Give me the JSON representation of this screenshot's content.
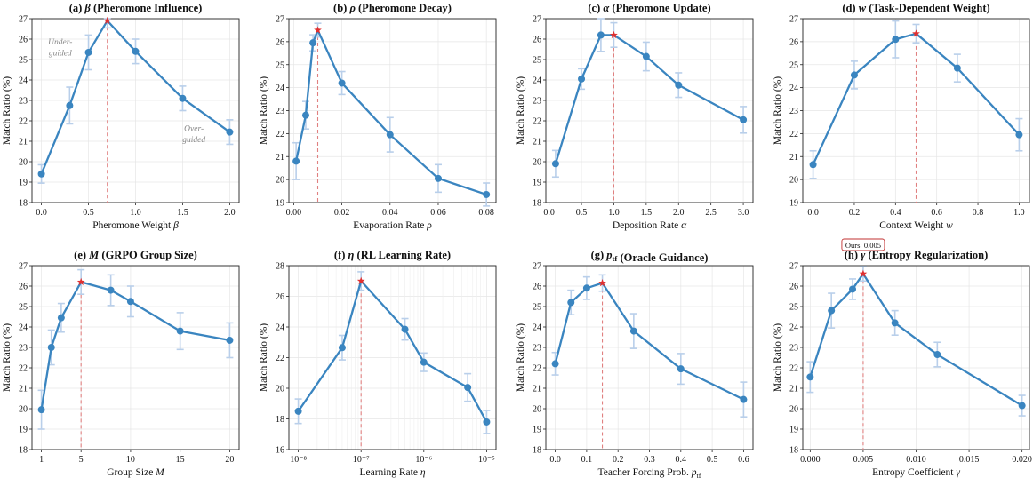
{
  "colors": {
    "line": "#3a85c0",
    "marker": "#3a85c0",
    "errorbar": "#b9cfea",
    "star": "#e03030",
    "vline": "#e08080",
    "grid": "#e6e6e6"
  },
  "chart_data": [
    {
      "type": "line",
      "title": "(a) β (Pheromone Influence)",
      "xlabel": "Pheromone Weight β",
      "ylabel": "Match Ratio (%)",
      "xscale": "linear",
      "xlim": [
        -0.1,
        2.1
      ],
      "ylim": [
        18,
        27
      ],
      "xticks": [
        0.0,
        0.5,
        1.0,
        1.5,
        2.0
      ],
      "xtick_labels": [
        "0.0",
        "0.5",
        "1.0",
        "1.5",
        "2.0"
      ],
      "yticks": [
        18,
        19,
        20,
        21,
        22,
        23,
        24,
        25,
        26,
        27
      ],
      "x": [
        0.0,
        0.3,
        0.5,
        0.7,
        1.0,
        1.5,
        2.0
      ],
      "y": [
        19.4,
        22.75,
        25.35,
        26.9,
        25.4,
        23.1,
        21.45
      ],
      "err": [
        0.45,
        0.9,
        0.85,
        0.35,
        0.6,
        0.6,
        0.6
      ],
      "best_x": 0.7,
      "best_y": 26.9,
      "annotations": [
        {
          "text": "Under-",
          "x": 0.2,
          "y": 25.75
        },
        {
          "text": "guided",
          "x": 0.2,
          "y": 25.2
        },
        {
          "text": "Over-",
          "x": 1.62,
          "y": 21.5
        },
        {
          "text": "guided",
          "x": 1.62,
          "y": 20.95
        }
      ]
    },
    {
      "type": "line",
      "title": "(b) ρ (Pheromone Decay)",
      "xlabel": "Evaporation Rate ρ",
      "ylabel": "Match Ratio (%)",
      "xscale": "linear",
      "xlim": [
        -0.002,
        0.084
      ],
      "ylim": [
        19,
        27
      ],
      "xticks": [
        0.0,
        0.02,
        0.04,
        0.06,
        0.08
      ],
      "xtick_labels": [
        "0.00",
        "0.02",
        "0.04",
        "0.06",
        "0.08"
      ],
      "yticks": [
        19,
        20,
        21,
        22,
        23,
        24,
        25,
        26,
        27
      ],
      "x": [
        0.001,
        0.005,
        0.008,
        0.01,
        0.02,
        0.04,
        0.06,
        0.08
      ],
      "y": [
        20.8,
        22.8,
        25.95,
        26.5,
        24.2,
        21.95,
        20.05,
        19.35
      ],
      "err": [
        0.8,
        0.6,
        0.35,
        0.3,
        0.5,
        0.75,
        0.6,
        0.5
      ],
      "best_x": 0.01,
      "best_y": 26.5,
      "annotations": []
    },
    {
      "type": "line",
      "title": "(c) α (Pheromone Update)",
      "xlabel": "Deposition Rate α",
      "ylabel": "Match Ratio (%)",
      "xscale": "linear",
      "xlim": [
        -0.05,
        3.15
      ],
      "ylim": [
        18,
        27
      ],
      "xticks": [
        0.0,
        0.5,
        1.0,
        1.5,
        2.0,
        2.5,
        3.0
      ],
      "xtick_labels": [
        "0.0",
        "0.5",
        "1.0",
        "1.5",
        "2.0",
        "2.5",
        "3.0"
      ],
      "yticks": [
        18,
        19,
        20,
        21,
        22,
        23,
        24,
        25,
        26,
        27
      ],
      "x": [
        0.1,
        0.5,
        0.8,
        1.0,
        1.5,
        2.0,
        3.0
      ],
      "y": [
        19.9,
        24.05,
        26.2,
        26.2,
        25.15,
        23.75,
        22.05
      ],
      "err": [
        0.65,
        0.5,
        0.8,
        0.6,
        0.7,
        0.6,
        0.65
      ],
      "best_x": 1.0,
      "best_y": 26.2,
      "annotations": []
    },
    {
      "type": "line",
      "title": "(d) w (Task-Dependent Weight)",
      "xlabel": "Context Weight w",
      "ylabel": "Match Ratio (%)",
      "xscale": "linear",
      "xlim": [
        -0.05,
        1.05
      ],
      "ylim": [
        19,
        27
      ],
      "xticks": [
        0.0,
        0.2,
        0.4,
        0.6,
        0.8,
        1.0
      ],
      "xtick_labels": [
        "0.0",
        "0.2",
        "0.4",
        "0.6",
        "0.8",
        "1.0"
      ],
      "yticks": [
        19,
        20,
        21,
        22,
        23,
        24,
        25,
        26,
        27
      ],
      "x": [
        0.0,
        0.2,
        0.4,
        0.5,
        0.7,
        1.0
      ],
      "y": [
        20.65,
        24.55,
        26.1,
        26.35,
        24.85,
        21.95
      ],
      "err": [
        0.6,
        0.6,
        0.8,
        0.4,
        0.6,
        0.7
      ],
      "best_x": 0.5,
      "best_y": 26.35,
      "annotations": []
    },
    {
      "type": "line",
      "title": "(e) M (GRPO Group Size)",
      "xlabel": "Group Size M",
      "ylabel": "Match Ratio (%)",
      "xscale": "linear",
      "xlim": [
        0.05,
        20.95
      ],
      "ylim": [
        18,
        27
      ],
      "xticks": [
        1,
        5,
        10,
        15,
        20
      ],
      "xtick_labels": [
        "1",
        "5",
        "10",
        "15",
        "20"
      ],
      "yticks": [
        18,
        19,
        20,
        21,
        22,
        23,
        24,
        25,
        26,
        27
      ],
      "x": [
        1,
        2,
        3,
        5,
        8,
        10,
        15,
        20
      ],
      "y": [
        19.95,
        23.0,
        24.45,
        26.2,
        25.8,
        25.25,
        23.8,
        23.35
      ],
      "err": [
        0.95,
        0.85,
        0.7,
        0.6,
        0.75,
        0.75,
        0.9,
        0.85
      ],
      "best_x": 5,
      "best_y": 26.2,
      "annotations": []
    },
    {
      "type": "line",
      "title": "(f) η (RL Learning Rate)",
      "xlabel": "Learning Rate η",
      "ylabel": "Match Ratio (%)",
      "xscale": "log",
      "xlim": [
        -8.15,
        -4.85
      ],
      "ylim": [
        16,
        28
      ],
      "xticks": [
        -8,
        -7,
        -6,
        -5
      ],
      "xtick_labels": [
        "10⁻⁸",
        "10⁻⁷",
        "10⁻⁶",
        "10⁻⁵"
      ],
      "yticks": [
        16,
        18,
        20,
        22,
        24,
        26,
        28
      ],
      "x_values": [
        "1e-8",
        "5e-8",
        "1e-7",
        "5e-7",
        "1e-6",
        "5e-6",
        "1e-5"
      ],
      "x": [
        -8,
        -7.301,
        -7,
        -6.301,
        -6,
        -5.301,
        -5
      ],
      "y": [
        18.5,
        22.65,
        27.0,
        23.85,
        21.7,
        20.05,
        17.8
      ],
      "err": [
        0.8,
        0.8,
        0.6,
        0.7,
        0.6,
        0.9,
        0.75
      ],
      "best_x": -7,
      "best_y": 27.0,
      "annotations": []
    },
    {
      "type": "line",
      "title": "(g) ptf (Oracle Guidance)",
      "xlabel": "Teacher Forcing Prob. ptf",
      "ylabel": "Match Ratio (%)",
      "xscale": "linear",
      "xlim": [
        -0.03,
        0.63
      ],
      "ylim": [
        18,
        27
      ],
      "xticks": [
        0.0,
        0.1,
        0.2,
        0.3,
        0.4,
        0.5,
        0.6
      ],
      "xtick_labels": [
        "0.0",
        "0.1",
        "0.2",
        "0.3",
        "0.4",
        "0.5",
        "0.6"
      ],
      "yticks": [
        18,
        19,
        20,
        21,
        22,
        23,
        24,
        25,
        26,
        27
      ],
      "x": [
        0.0,
        0.05,
        0.1,
        0.15,
        0.25,
        0.4,
        0.6
      ],
      "y": [
        22.2,
        25.2,
        25.9,
        26.15,
        23.8,
        21.95,
        20.45
      ],
      "err": [
        0.55,
        0.6,
        0.55,
        0.4,
        0.85,
        0.75,
        0.85
      ],
      "best_x": 0.15,
      "best_y": 26.15,
      "annotations": []
    },
    {
      "type": "line",
      "title": "(h) γ (Entropy Regularization)",
      "xlabel": "Entropy Coefficient γ",
      "ylabel": "Match Ratio (%)",
      "xscale": "linear",
      "xlim": [
        -0.0007,
        0.0207
      ],
      "ylim": [
        18,
        27
      ],
      "xticks": [
        0.0,
        0.005,
        0.01,
        0.015,
        0.02
      ],
      "xtick_labels": [
        "0.000",
        "0.005",
        "0.010",
        "0.015",
        "0.020"
      ],
      "yticks": [
        18,
        19,
        20,
        21,
        22,
        23,
        24,
        25,
        26,
        27
      ],
      "x": [
        0.0,
        0.002,
        0.004,
        0.005,
        0.008,
        0.012,
        0.02
      ],
      "y": [
        21.55,
        24.8,
        25.85,
        26.6,
        24.2,
        22.65,
        20.15
      ],
      "err": [
        0.75,
        0.85,
        0.5,
        0.35,
        0.6,
        0.6,
        0.5
      ],
      "best_x": 0.005,
      "best_y": 26.6,
      "callout": "Ours: 0.005",
      "annotations": []
    }
  ]
}
